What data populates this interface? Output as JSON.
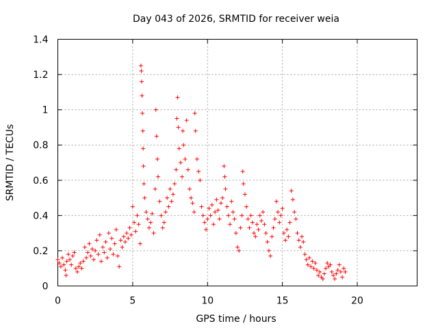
{
  "chart_data": {
    "type": "scatter",
    "title": "Day 043 of 2026, SRMTID for receiver weia",
    "xlabel": "GPS time / hours",
    "ylabel": "SRMTID / TECUs",
    "xlim": [
      0,
      24
    ],
    "ylim": [
      0,
      1.4
    ],
    "x_ticks": [
      0,
      5,
      10,
      15,
      20
    ],
    "x_tick_labels": [
      "0",
      "5",
      "10",
      "15",
      "20"
    ],
    "y_ticks": [
      0,
      0.2,
      0.4,
      0.6,
      0.8,
      1.0,
      1.2,
      1.4
    ],
    "y_tick_labels": [
      "0",
      "0.2",
      "0.4",
      "0.6",
      "0.8",
      "1",
      "1.2",
      "1.4"
    ],
    "grid": true,
    "marker": "plus",
    "color": "#ff0000",
    "series": [
      {
        "name": "SRMTID",
        "points": [
          [
            0.0,
            0.15
          ],
          [
            0.1,
            0.13
          ],
          [
            0.2,
            0.11
          ],
          [
            0.3,
            0.16
          ],
          [
            0.4,
            0.12
          ],
          [
            0.5,
            0.09
          ],
          [
            0.55,
            0.06
          ],
          [
            0.6,
            0.14
          ],
          [
            0.7,
            0.18
          ],
          [
            0.8,
            0.15
          ],
          [
            0.9,
            0.12
          ],
          [
            1.0,
            0.17
          ],
          [
            1.1,
            0.19
          ],
          [
            1.2,
            0.1
          ],
          [
            1.3,
            0.08
          ],
          [
            1.4,
            0.11
          ],
          [
            1.5,
            0.13
          ],
          [
            1.6,
            0.1
          ],
          [
            1.7,
            0.14
          ],
          [
            1.8,
            0.22
          ],
          [
            1.9,
            0.16
          ],
          [
            2.0,
            0.19
          ],
          [
            2.1,
            0.24
          ],
          [
            2.2,
            0.17
          ],
          [
            2.3,
            0.21
          ],
          [
            2.4,
            0.15
          ],
          [
            2.5,
            0.2
          ],
          [
            2.6,
            0.26
          ],
          [
            2.7,
            0.18
          ],
          [
            2.8,
            0.29
          ],
          [
            2.9,
            0.14
          ],
          [
            3.0,
            0.22
          ],
          [
            3.1,
            0.19
          ],
          [
            3.2,
            0.25
          ],
          [
            3.3,
            0.16
          ],
          [
            3.4,
            0.3
          ],
          [
            3.5,
            0.21
          ],
          [
            3.6,
            0.27
          ],
          [
            3.7,
            0.18
          ],
          [
            3.8,
            0.24
          ],
          [
            3.9,
            0.32
          ],
          [
            4.0,
            0.17
          ],
          [
            4.1,
            0.11
          ],
          [
            4.2,
            0.26
          ],
          [
            4.3,
            0.22
          ],
          [
            4.4,
            0.28
          ],
          [
            4.5,
            0.25
          ],
          [
            4.6,
            0.3
          ],
          [
            4.7,
            0.27
          ],
          [
            4.8,
            0.33
          ],
          [
            4.9,
            0.29
          ],
          [
            5.0,
            0.45
          ],
          [
            5.1,
            0.36
          ],
          [
            5.2,
            0.31
          ],
          [
            5.3,
            0.4
          ],
          [
            5.4,
            0.35
          ],
          [
            5.5,
            0.24
          ],
          [
            5.55,
            1.25
          ],
          [
            5.58,
            1.22
          ],
          [
            5.6,
            1.16
          ],
          [
            5.62,
            1.08
          ],
          [
            5.65,
            0.98
          ],
          [
            5.68,
            0.88
          ],
          [
            5.7,
            0.78
          ],
          [
            5.72,
            0.68
          ],
          [
            5.75,
            0.58
          ],
          [
            5.8,
            0.5
          ],
          [
            5.9,
            0.42
          ],
          [
            6.0,
            0.38
          ],
          [
            6.1,
            0.33
          ],
          [
            6.2,
            0.36
          ],
          [
            6.3,
            0.41
          ],
          [
            6.4,
            0.3
          ],
          [
            6.5,
            0.55
          ],
          [
            6.55,
            1.0
          ],
          [
            6.6,
            0.85
          ],
          [
            6.65,
            0.72
          ],
          [
            6.7,
            0.62
          ],
          [
            6.8,
            0.48
          ],
          [
            6.9,
            0.4
          ],
          [
            7.0,
            0.33
          ],
          [
            7.1,
            0.36
          ],
          [
            7.2,
            0.42
          ],
          [
            7.3,
            0.5
          ],
          [
            7.4,
            0.45
          ],
          [
            7.5,
            0.55
          ],
          [
            7.6,
            0.48
          ],
          [
            7.7,
            0.52
          ],
          [
            7.8,
            0.58
          ],
          [
            7.9,
            0.66
          ],
          [
            7.95,
            0.95
          ],
          [
            8.0,
            1.07
          ],
          [
            8.05,
            0.9
          ],
          [
            8.1,
            0.78
          ],
          [
            8.2,
            0.7
          ],
          [
            8.3,
            0.62
          ],
          [
            8.35,
            0.88
          ],
          [
            8.4,
            0.8
          ],
          [
            8.5,
            0.72
          ],
          [
            8.6,
            0.94
          ],
          [
            8.7,
            0.66
          ],
          [
            8.8,
            0.55
          ],
          [
            8.9,
            0.5
          ],
          [
            9.0,
            0.47
          ],
          [
            9.1,
            0.42
          ],
          [
            9.15,
            0.98
          ],
          [
            9.2,
            0.88
          ],
          [
            9.3,
            0.72
          ],
          [
            9.4,
            0.65
          ],
          [
            9.5,
            0.6
          ],
          [
            9.6,
            0.45
          ],
          [
            9.7,
            0.4
          ],
          [
            9.8,
            0.36
          ],
          [
            9.9,
            0.32
          ],
          [
            10.0,
            0.38
          ],
          [
            10.1,
            0.44
          ],
          [
            10.2,
            0.4
          ],
          [
            10.3,
            0.46
          ],
          [
            10.4,
            0.35
          ],
          [
            10.5,
            0.42
          ],
          [
            10.6,
            0.49
          ],
          [
            10.7,
            0.43
          ],
          [
            10.8,
            0.38
          ],
          [
            10.9,
            0.47
          ],
          [
            11.0,
            0.5
          ],
          [
            11.1,
            0.68
          ],
          [
            11.15,
            0.62
          ],
          [
            11.2,
            0.55
          ],
          [
            11.3,
            0.45
          ],
          [
            11.4,
            0.4
          ],
          [
            11.5,
            0.35
          ],
          [
            11.6,
            0.48
          ],
          [
            11.7,
            0.42
          ],
          [
            11.8,
            0.38
          ],
          [
            11.9,
            0.3
          ],
          [
            12.0,
            0.22
          ],
          [
            12.1,
            0.2
          ],
          [
            12.2,
            0.33
          ],
          [
            12.3,
            0.4
          ],
          [
            12.35,
            0.65
          ],
          [
            12.4,
            0.58
          ],
          [
            12.5,
            0.52
          ],
          [
            12.6,
            0.45
          ],
          [
            12.7,
            0.38
          ],
          [
            12.8,
            0.33
          ],
          [
            12.9,
            0.4
          ],
          [
            13.0,
            0.36
          ],
          [
            13.1,
            0.3
          ],
          [
            13.2,
            0.28
          ],
          [
            13.3,
            0.35
          ],
          [
            13.4,
            0.32
          ],
          [
            13.5,
            0.4
          ],
          [
            13.6,
            0.37
          ],
          [
            13.7,
            0.42
          ],
          [
            13.8,
            0.35
          ],
          [
            13.9,
            0.3
          ],
          [
            14.0,
            0.25
          ],
          [
            14.1,
            0.2
          ],
          [
            14.2,
            0.17
          ],
          [
            14.3,
            0.28
          ],
          [
            14.4,
            0.33
          ],
          [
            14.5,
            0.38
          ],
          [
            14.6,
            0.48
          ],
          [
            14.7,
            0.42
          ],
          [
            14.8,
            0.36
          ],
          [
            14.9,
            0.4
          ],
          [
            15.0,
            0.44
          ],
          [
            15.1,
            0.3
          ],
          [
            15.2,
            0.26
          ],
          [
            15.3,
            0.32
          ],
          [
            15.4,
            0.28
          ],
          [
            15.5,
            0.36
          ],
          [
            15.6,
            0.54
          ],
          [
            15.7,
            0.49
          ],
          [
            15.8,
            0.42
          ],
          [
            15.9,
            0.38
          ],
          [
            16.0,
            0.3
          ],
          [
            16.1,
            0.26
          ],
          [
            16.2,
            0.22
          ],
          [
            16.3,
            0.28
          ],
          [
            16.4,
            0.25
          ],
          [
            16.5,
            0.18
          ],
          [
            16.6,
            0.15
          ],
          [
            16.7,
            0.12
          ],
          [
            16.8,
            0.16
          ],
          [
            16.9,
            0.11
          ],
          [
            17.0,
            0.14
          ],
          [
            17.1,
            0.1
          ],
          [
            17.2,
            0.13
          ],
          [
            17.3,
            0.09
          ],
          [
            17.4,
            0.06
          ],
          [
            17.5,
            0.08
          ],
          [
            17.6,
            0.05
          ],
          [
            17.7,
            0.04
          ],
          [
            17.8,
            0.07
          ],
          [
            17.9,
            0.1
          ],
          [
            18.0,
            0.13
          ],
          [
            18.1,
            0.11
          ],
          [
            18.2,
            0.12
          ],
          [
            18.3,
            0.08
          ],
          [
            18.4,
            0.06
          ],
          [
            18.5,
            0.04
          ],
          [
            18.6,
            0.07
          ],
          [
            18.7,
            0.09
          ],
          [
            18.8,
            0.12
          ],
          [
            18.9,
            0.08
          ],
          [
            19.0,
            0.05
          ],
          [
            19.1,
            0.1
          ],
          [
            19.2,
            0.08
          ]
        ]
      }
    ]
  }
}
